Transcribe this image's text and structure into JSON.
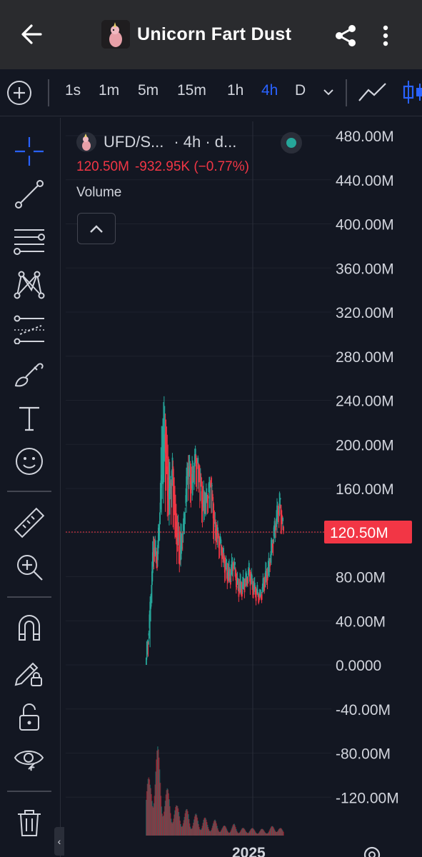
{
  "header": {
    "title": "Unicorn Fart Dust",
    "back_icon": "arrow-left-icon",
    "share_icon": "share-icon",
    "more_icon": "more-vertical-icon"
  },
  "intervals": [
    {
      "label": "1s",
      "active": false
    },
    {
      "label": "1m",
      "active": false
    },
    {
      "label": "5m",
      "active": false
    },
    {
      "label": "15m",
      "active": false
    },
    {
      "label": "1h",
      "active": false
    },
    {
      "label": "4h",
      "active": true
    },
    {
      "label": "D",
      "active": false
    }
  ],
  "legend": {
    "symbol": "UFD/S...",
    "interval": "· 4h · d...",
    "price": "120.50M",
    "change": "-932.95K (−0.77%)",
    "indicator": "Volume",
    "status_color": "#26a69a"
  },
  "left_tools": [
    "crosshair-icon",
    "trend-line-icon",
    "fib-levels-icon",
    "pattern-icon",
    "projection-icon",
    "brush-icon",
    "text-icon",
    "emoji-icon",
    "ruler-icon",
    "zoom-in-icon",
    "magnet-icon",
    "lock-drawing-icon",
    "unlock-icon",
    "eye-icon",
    "trash-icon"
  ],
  "colors": {
    "up": "#26a69a",
    "down": "#f23645",
    "accent": "#2962ff",
    "background": "#131722",
    "header": "#2a2b2e"
  },
  "chart_data": {
    "type": "candlestick",
    "price_axis_labels": [
      "480.00M",
      "440.00M",
      "400.00M",
      "360.00M",
      "320.00M",
      "280.00M",
      "240.00M",
      "200.00M",
      "160.00M",
      "120.00M",
      "80.00M",
      "40.00M",
      "0.0000",
      "-40.00M",
      "-80.00M",
      "-120.00M"
    ],
    "price_axis_values": [
      480,
      440,
      400,
      360,
      320,
      280,
      240,
      200,
      160,
      120,
      80,
      40,
      0,
      -40,
      -80,
      -120
    ],
    "unit": "M",
    "ylim": [
      -125,
      490
    ],
    "time_axis_label": "2025",
    "current_price": 120.5,
    "current_price_label": "120.50M",
    "close_path": [
      0,
      40,
      105,
      95,
      160,
      210,
      150,
      180,
      120,
      95,
      130,
      180,
      160,
      190,
      175,
      140,
      150,
      170,
      125,
      115,
      105,
      85,
      78,
      95,
      70,
      68,
      75,
      85,
      70,
      65,
      62,
      75,
      85,
      110,
      130,
      150,
      120.5
    ],
    "high_path": [
      0,
      50,
      125,
      120,
      280,
      240,
      230,
      205,
      150,
      140,
      160,
      200,
      190,
      200,
      190,
      170,
      165,
      175,
      140,
      125,
      115,
      100,
      95,
      110,
      88,
      80,
      90,
      95,
      80,
      72,
      70,
      90,
      95,
      120,
      145,
      150,
      125
    ],
    "low_path": [
      0,
      0,
      90,
      85,
      120,
      120,
      110,
      100,
      90,
      85,
      110,
      140,
      140,
      150,
      130,
      120,
      130,
      120,
      100,
      95,
      80,
      70,
      70,
      75,
      62,
      60,
      65,
      70,
      60,
      60,
      58,
      65,
      70,
      90,
      110,
      115,
      118
    ],
    "volume_relative": [
      0.55,
      0.6,
      1.0,
      0.9,
      0.7,
      0.5,
      0.45,
      0.4,
      0.3,
      0.3,
      0.25,
      0.28,
      0.2,
      0.22,
      0.18,
      0.2,
      0.15,
      0.14,
      0.16,
      0.12,
      0.1,
      0.1,
      0.09,
      0.12,
      0.08,
      0.08,
      0.07,
      0.09,
      0.07,
      0.06,
      0.07,
      0.06,
      0.07,
      0.1,
      0.12,
      0.08,
      0.05
    ]
  }
}
